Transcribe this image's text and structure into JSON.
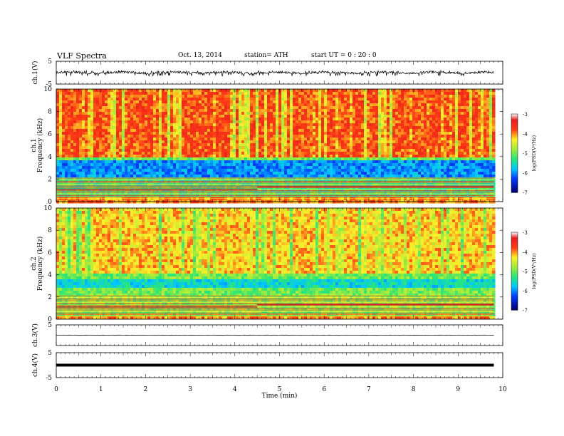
{
  "header": {
    "title": "VLF  Spectra",
    "date": "Oct. 13, 2014",
    "station": "station= ATH",
    "start": "start  UT  =   0  : 20 : 0"
  },
  "colorbar": {
    "label": "log(PSD(V²/Hz)",
    "ticks": [
      "-3",
      "-4",
      "-5",
      "-6",
      "-7"
    ]
  },
  "chart_data": [
    {
      "type": "line",
      "name": "ch1-waveform",
      "ylabel": "ch.1(V)",
      "yticks": [
        "5",
        "-5"
      ],
      "ylim": [
        -5,
        5
      ],
      "x_range_min": [
        0,
        9.8
      ],
      "amplitude_band": [
        -1.5,
        0.9
      ]
    },
    {
      "type": "heatmap",
      "name": "ch1-spectrogram",
      "ylabel": "ch.1  Frequency  (kHz)",
      "yticks": [
        "0",
        "2",
        "4",
        "6",
        "8",
        "10"
      ],
      "ylim": [
        0,
        10
      ],
      "x_range_min": [
        0,
        9.8
      ],
      "zlim": [
        -7,
        -3
      ],
      "bands": [
        {
          "freq_khz": [
            4,
            10
          ],
          "log_psd": -3.8
        },
        {
          "freq_khz": [
            3.6,
            4
          ],
          "log_psd": -5.0
        },
        {
          "freq_khz": [
            2.2,
            3.6
          ],
          "log_psd": -6.0
        },
        {
          "freq_khz": [
            0,
            2.2
          ],
          "log_psd": -5.3
        }
      ],
      "step_time_min": 4.5
    },
    {
      "type": "heatmap",
      "name": "ch2-spectrogram",
      "ylabel": "ch.2  Frequency  (kHz)",
      "yticks": [
        "0",
        "2",
        "4",
        "6",
        "8",
        "10"
      ],
      "ylim": [
        0,
        10
      ],
      "x_range_min": [
        0,
        9.8
      ],
      "zlim": [
        -7,
        -3
      ],
      "bands": [
        {
          "freq_khz": [
            4,
            10
          ],
          "log_psd": -4.2
        },
        {
          "freq_khz": [
            3.6,
            4
          ],
          "log_psd": -5.0
        },
        {
          "freq_khz": [
            2.8,
            3.6
          ],
          "log_psd": -5.6
        },
        {
          "freq_khz": [
            0,
            2.8
          ],
          "log_psd": -5.0
        }
      ],
      "step_time_min": 4.5
    },
    {
      "type": "line",
      "name": "ch3-waveform",
      "ylabel": "ch.3(V)",
      "yticks": [
        "5"
      ],
      "ylim": [
        -5,
        5
      ],
      "x_range_min": [
        0,
        9.8
      ],
      "level": 0
    },
    {
      "type": "line",
      "name": "ch4-waveform",
      "ylabel": "ch.4(V)",
      "yticks": [
        "5",
        "-5"
      ],
      "ylim": [
        -5,
        5
      ],
      "x_range_min": [
        0,
        9.8
      ],
      "level": 0
    }
  ],
  "x_axis": {
    "label": "Time  (min)",
    "ticks": [
      "0",
      "1",
      "2",
      "3",
      "4",
      "5",
      "6",
      "7",
      "8",
      "9",
      "10"
    ],
    "xlim": [
      0,
      10
    ]
  }
}
